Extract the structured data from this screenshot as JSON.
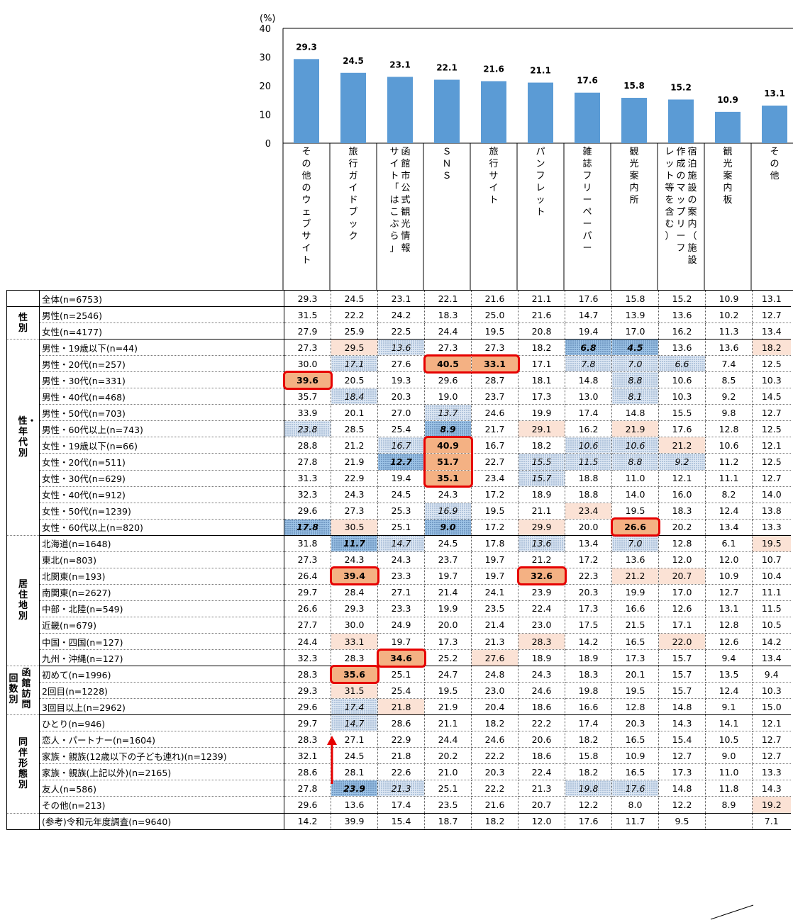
{
  "chart_data": {
    "type": "bar",
    "ylabel": "(%)",
    "ylim": [
      0,
      40
    ],
    "yticks": [
      "40",
      "30",
      "20",
      "10",
      "0"
    ],
    "bar_color": "#5b9bd5",
    "categories": [
      "その他のウェブサイト",
      "旅行ガイドブック",
      "函館市公式観光情報サイト「はこぶら」",
      "ＳＮＳ",
      "旅行サイト",
      "パンフレット",
      "雑誌フリーペーパー",
      "観光案内所",
      "宿泊施設の案内作成のマップリーフレット等を含む（施設）",
      "観光案内板",
      "その他"
    ],
    "category_columns": [
      [
        "その他のウェブサイト"
      ],
      [
        "旅行ガイドブック"
      ],
      [
        "函館市公式観光情報",
        "サイト「はこぶら」"
      ],
      [
        "ＳＮＳ"
      ],
      [
        "旅行サイト"
      ],
      [
        "パンフレット"
      ],
      [
        "雑誌フリーペーパー"
      ],
      [
        "観光案内所"
      ],
      [
        "宿泊施設の案内（施設",
        "作成のマップリーフ",
        "レット等を含む）"
      ],
      [
        "観光案内板"
      ],
      [
        "その他"
      ]
    ],
    "values": [
      29.3,
      24.5,
      23.1,
      22.1,
      21.6,
      21.1,
      17.6,
      15.8,
      15.2,
      10.9,
      13.1
    ],
    "value_labels": [
      "29.3",
      "24.5",
      "23.1",
      "22.1",
      "21.6",
      "21.1",
      "17.6",
      "15.8",
      "15.2",
      "10.9",
      "13.1"
    ]
  },
  "table": {
    "groups": [
      {
        "label": "",
        "rows": [
          {
            "label": "全体(n=6753)",
            "values": [
              "29.3",
              "24.5",
              "23.1",
              "22.1",
              "21.6",
              "21.1",
              "17.6",
              "15.8",
              "15.2",
              "10.9",
              "13.1"
            ]
          }
        ]
      },
      {
        "label": "性別",
        "rows": [
          {
            "label": "男性(n=2546)",
            "values": [
              "31.5",
              "22.2",
              "24.2",
              "18.3",
              "25.0",
              "21.6",
              "14.7",
              "13.9",
              "13.6",
              "10.2",
              "12.7"
            ]
          },
          {
            "label": "女性(n=4177)",
            "values": [
              "27.9",
              "25.9",
              "22.5",
              "24.4",
              "19.5",
              "20.8",
              "19.4",
              "17.0",
              "16.2",
              "11.3",
              "13.4"
            ]
          }
        ]
      },
      {
        "label": "性・年代別",
        "rows": [
          {
            "label": "男性・19歳以下(n=44)",
            "values": [
              "27.3",
              "29.5",
              "13.6",
              "27.3",
              "27.3",
              "18.2",
              "6.8",
              "4.5",
              "13.6",
              "13.6",
              "18.2"
            ]
          },
          {
            "label": "男性・20代(n=257)",
            "values": [
              "30.0",
              "17.1",
              "27.6",
              "40.5",
              "33.1",
              "17.1",
              "7.8",
              "7.0",
              "6.6",
              "7.4",
              "12.5"
            ]
          },
          {
            "label": "男性・30代(n=331)",
            "values": [
              "39.6",
              "20.5",
              "19.3",
              "29.6",
              "28.7",
              "18.1",
              "14.8",
              "8.8",
              "10.6",
              "8.5",
              "10.3"
            ]
          },
          {
            "label": "男性・40代(n=468)",
            "values": [
              "35.7",
              "18.4",
              "20.3",
              "19.0",
              "23.7",
              "17.3",
              "13.0",
              "8.1",
              "10.3",
              "9.2",
              "14.5"
            ]
          },
          {
            "label": "男性・50代(n=703)",
            "values": [
              "33.9",
              "20.1",
              "27.0",
              "13.7",
              "24.6",
              "19.9",
              "17.4",
              "14.8",
              "15.5",
              "9.8",
              "12.7"
            ]
          },
          {
            "label": "男性・60代以上(n=743)",
            "values": [
              "23.8",
              "28.5",
              "25.4",
              "8.9",
              "21.7",
              "29.1",
              "16.2",
              "21.9",
              "17.6",
              "12.8",
              "12.5"
            ]
          },
          {
            "label": "女性・19歳以下(n=66)",
            "values": [
              "28.8",
              "21.2",
              "16.7",
              "40.9",
              "16.7",
              "18.2",
              "10.6",
              "10.6",
              "21.2",
              "10.6",
              "12.1"
            ]
          },
          {
            "label": "女性・20代(n=511)",
            "values": [
              "27.8",
              "21.9",
              "12.7",
              "51.7",
              "22.7",
              "15.5",
              "11.5",
              "8.8",
              "9.2",
              "11.2",
              "12.5"
            ]
          },
          {
            "label": "女性・30代(n=629)",
            "values": [
              "31.3",
              "22.9",
              "19.4",
              "35.1",
              "23.4",
              "15.7",
              "18.8",
              "11.0",
              "12.1",
              "11.1",
              "12.7"
            ]
          },
          {
            "label": "女性・40代(n=912)",
            "values": [
              "32.3",
              "24.3",
              "24.5",
              "24.3",
              "17.2",
              "18.9",
              "18.8",
              "14.0",
              "16.0",
              "8.2",
              "14.0"
            ]
          },
          {
            "label": "女性・50代(n=1239)",
            "values": [
              "29.6",
              "27.3",
              "25.3",
              "16.9",
              "19.5",
              "21.1",
              "23.4",
              "19.5",
              "18.3",
              "12.4",
              "13.8"
            ]
          },
          {
            "label": "女性・60代以上(n=820)",
            "values": [
              "17.8",
              "30.5",
              "25.1",
              "9.0",
              "17.2",
              "29.9",
              "20.0",
              "26.6",
              "20.2",
              "13.4",
              "13.3"
            ]
          }
        ]
      },
      {
        "label": "居住地別",
        "rows": [
          {
            "label": "北海道(n=1648)",
            "values": [
              "31.8",
              "11.7",
              "14.7",
              "24.5",
              "17.8",
              "13.6",
              "13.4",
              "7.0",
              "12.8",
              "6.1",
              "19.5"
            ]
          },
          {
            "label": "東北(n=803)",
            "values": [
              "27.3",
              "24.3",
              "24.3",
              "23.7",
              "19.7",
              "21.2",
              "17.2",
              "13.6",
              "12.0",
              "12.0",
              "10.7"
            ]
          },
          {
            "label": "北関東(n=193)",
            "values": [
              "26.4",
              "39.4",
              "23.3",
              "19.7",
              "19.7",
              "32.6",
              "22.3",
              "21.2",
              "20.7",
              "10.9",
              "10.4"
            ]
          },
          {
            "label": "南関東(n=2627)",
            "values": [
              "29.7",
              "28.4",
              "27.1",
              "21.4",
              "24.1",
              "23.9",
              "20.3",
              "19.9",
              "17.0",
              "12.7",
              "11.1"
            ]
          },
          {
            "label": "中部・北陸(n=549)",
            "values": [
              "26.6",
              "29.3",
              "23.3",
              "19.9",
              "23.5",
              "22.4",
              "17.3",
              "16.6",
              "12.6",
              "13.1",
              "11.5"
            ]
          },
          {
            "label": "近畿(n=679)",
            "values": [
              "27.7",
              "30.0",
              "24.9",
              "20.0",
              "21.4",
              "23.0",
              "17.5",
              "21.5",
              "17.1",
              "12.8",
              "10.5"
            ]
          },
          {
            "label": "中国・四国(n=127)",
            "values": [
              "24.4",
              "33.1",
              "19.7",
              "17.3",
              "21.3",
              "28.3",
              "14.2",
              "16.5",
              "22.0",
              "12.6",
              "14.2"
            ]
          },
          {
            "label": "九州・沖縄(n=127)",
            "values": [
              "32.3",
              "28.3",
              "34.6",
              "25.2",
              "27.6",
              "18.9",
              "18.9",
              "17.3",
              "15.7",
              "9.4",
              "13.4"
            ]
          }
        ]
      },
      {
        "label": "回数別",
        "label2": "函館訪問",
        "rows": [
          {
            "label": "初めて(n=1996)",
            "values": [
              "28.3",
              "35.6",
              "25.1",
              "24.7",
              "24.8",
              "24.3",
              "18.3",
              "20.1",
              "15.7",
              "13.5",
              "9.4"
            ]
          },
          {
            "label": "2回目(n=1228)",
            "values": [
              "29.3",
              "31.5",
              "25.4",
              "19.5",
              "23.0",
              "24.6",
              "19.8",
              "19.5",
              "15.7",
              "12.4",
              "10.3"
            ]
          },
          {
            "label": "3回目以上(n=2962)",
            "values": [
              "29.6",
              "17.4",
              "21.8",
              "21.9",
              "20.4",
              "18.6",
              "16.6",
              "12.8",
              "14.8",
              "9.1",
              "15.0"
            ]
          }
        ]
      },
      {
        "label": "同伴形態別",
        "rows": [
          {
            "label": "ひとり(n=946)",
            "values": [
              "29.7",
              "14.7",
              "28.6",
              "21.1",
              "18.2",
              "22.2",
              "17.4",
              "20.3",
              "14.3",
              "14.1",
              "12.1"
            ]
          },
          {
            "label": "恋人・パートナー(n=1604)",
            "values": [
              "28.3",
              "27.1",
              "22.9",
              "24.4",
              "24.6",
              "20.6",
              "18.2",
              "16.5",
              "15.4",
              "10.5",
              "12.7"
            ]
          },
          {
            "label": "家族・親族(12歳以下の子ども連れ)(n=1239)",
            "values": [
              "32.1",
              "24.5",
              "21.8",
              "20.2",
              "22.2",
              "18.6",
              "15.8",
              "10.9",
              "12.7",
              "9.0",
              "12.7"
            ]
          },
          {
            "label": "家族・親族(上記以外)(n=2165)",
            "values": [
              "28.6",
              "28.1",
              "22.6",
              "21.0",
              "20.3",
              "22.4",
              "18.2",
              "16.5",
              "17.3",
              "11.0",
              "13.3"
            ]
          },
          {
            "label": "友人(n=586)",
            "values": [
              "27.8",
              "23.9",
              "21.3",
              "25.1",
              "22.2",
              "21.3",
              "19.8",
              "17.6",
              "14.8",
              "11.8",
              "14.3"
            ]
          },
          {
            "label": "その他(n=213)",
            "values": [
              "29.6",
              "13.6",
              "17.4",
              "23.5",
              "21.6",
              "20.7",
              "12.2",
              "8.0",
              "12.2",
              "8.9",
              "19.2"
            ]
          }
        ]
      },
      {
        "label": "",
        "rows": [
          {
            "label": "(参考)令和元年度調査(n=9640)",
            "values": [
              "14.2",
              "39.9",
              "15.4",
              "18.7",
              "18.2",
              "12.0",
              "17.6",
              "11.7",
              "9.5",
              "",
              "7.1"
            ]
          }
        ]
      }
    ],
    "highlights": {
      "hiA": [
        [
          3,
          1
        ],
        [
          3,
          10
        ],
        [
          5,
          0
        ],
        [
          8,
          5
        ],
        [
          8,
          7
        ],
        [
          9,
          8
        ],
        [
          13,
          6
        ],
        [
          14,
          1
        ],
        [
          14,
          5
        ],
        [
          17,
          1
        ],
        [
          17,
          7
        ],
        [
          17,
          8
        ],
        [
          21,
          1
        ],
        [
          21,
          5
        ],
        [
          21,
          8
        ],
        [
          22,
          4
        ],
        [
          24,
          1
        ],
        [
          25,
          2
        ],
        [
          31,
          10
        ],
        [
          15,
          10
        ]
      ],
      "hiB": [
        [
          4,
          3
        ],
        [
          4,
          4
        ],
        [
          5,
          0
        ],
        [
          9,
          3
        ],
        [
          10,
          3
        ],
        [
          11,
          3
        ],
        [
          14,
          7
        ],
        [
          17,
          1
        ],
        [
          17,
          5
        ],
        [
          22,
          2
        ],
        [
          23,
          1
        ]
      ],
      "loA": [
        [
          3,
          2
        ],
        [
          4,
          1
        ],
        [
          4,
          6
        ],
        [
          4,
          7
        ],
        [
          4,
          8
        ],
        [
          5,
          7
        ],
        [
          6,
          1
        ],
        [
          6,
          7
        ],
        [
          7,
          3
        ],
        [
          8,
          0
        ],
        [
          9,
          2
        ],
        [
          9,
          6
        ],
        [
          9,
          7
        ],
        [
          10,
          5
        ],
        [
          10,
          6
        ],
        [
          10,
          7
        ],
        [
          10,
          8
        ],
        [
          11,
          5
        ],
        [
          13,
          3
        ],
        [
          15,
          2
        ],
        [
          15,
          5
        ],
        [
          15,
          7
        ],
        [
          25,
          1
        ],
        [
          26,
          1
        ],
        [
          30,
          2
        ],
        [
          30,
          6
        ],
        [
          30,
          7
        ]
      ],
      "loB": [
        [
          3,
          6
        ],
        [
          3,
          7
        ],
        [
          8,
          3
        ],
        [
          10,
          2
        ],
        [
          14,
          0
        ],
        [
          14,
          3
        ],
        [
          15,
          1
        ],
        [
          30,
          1
        ]
      ]
    }
  }
}
